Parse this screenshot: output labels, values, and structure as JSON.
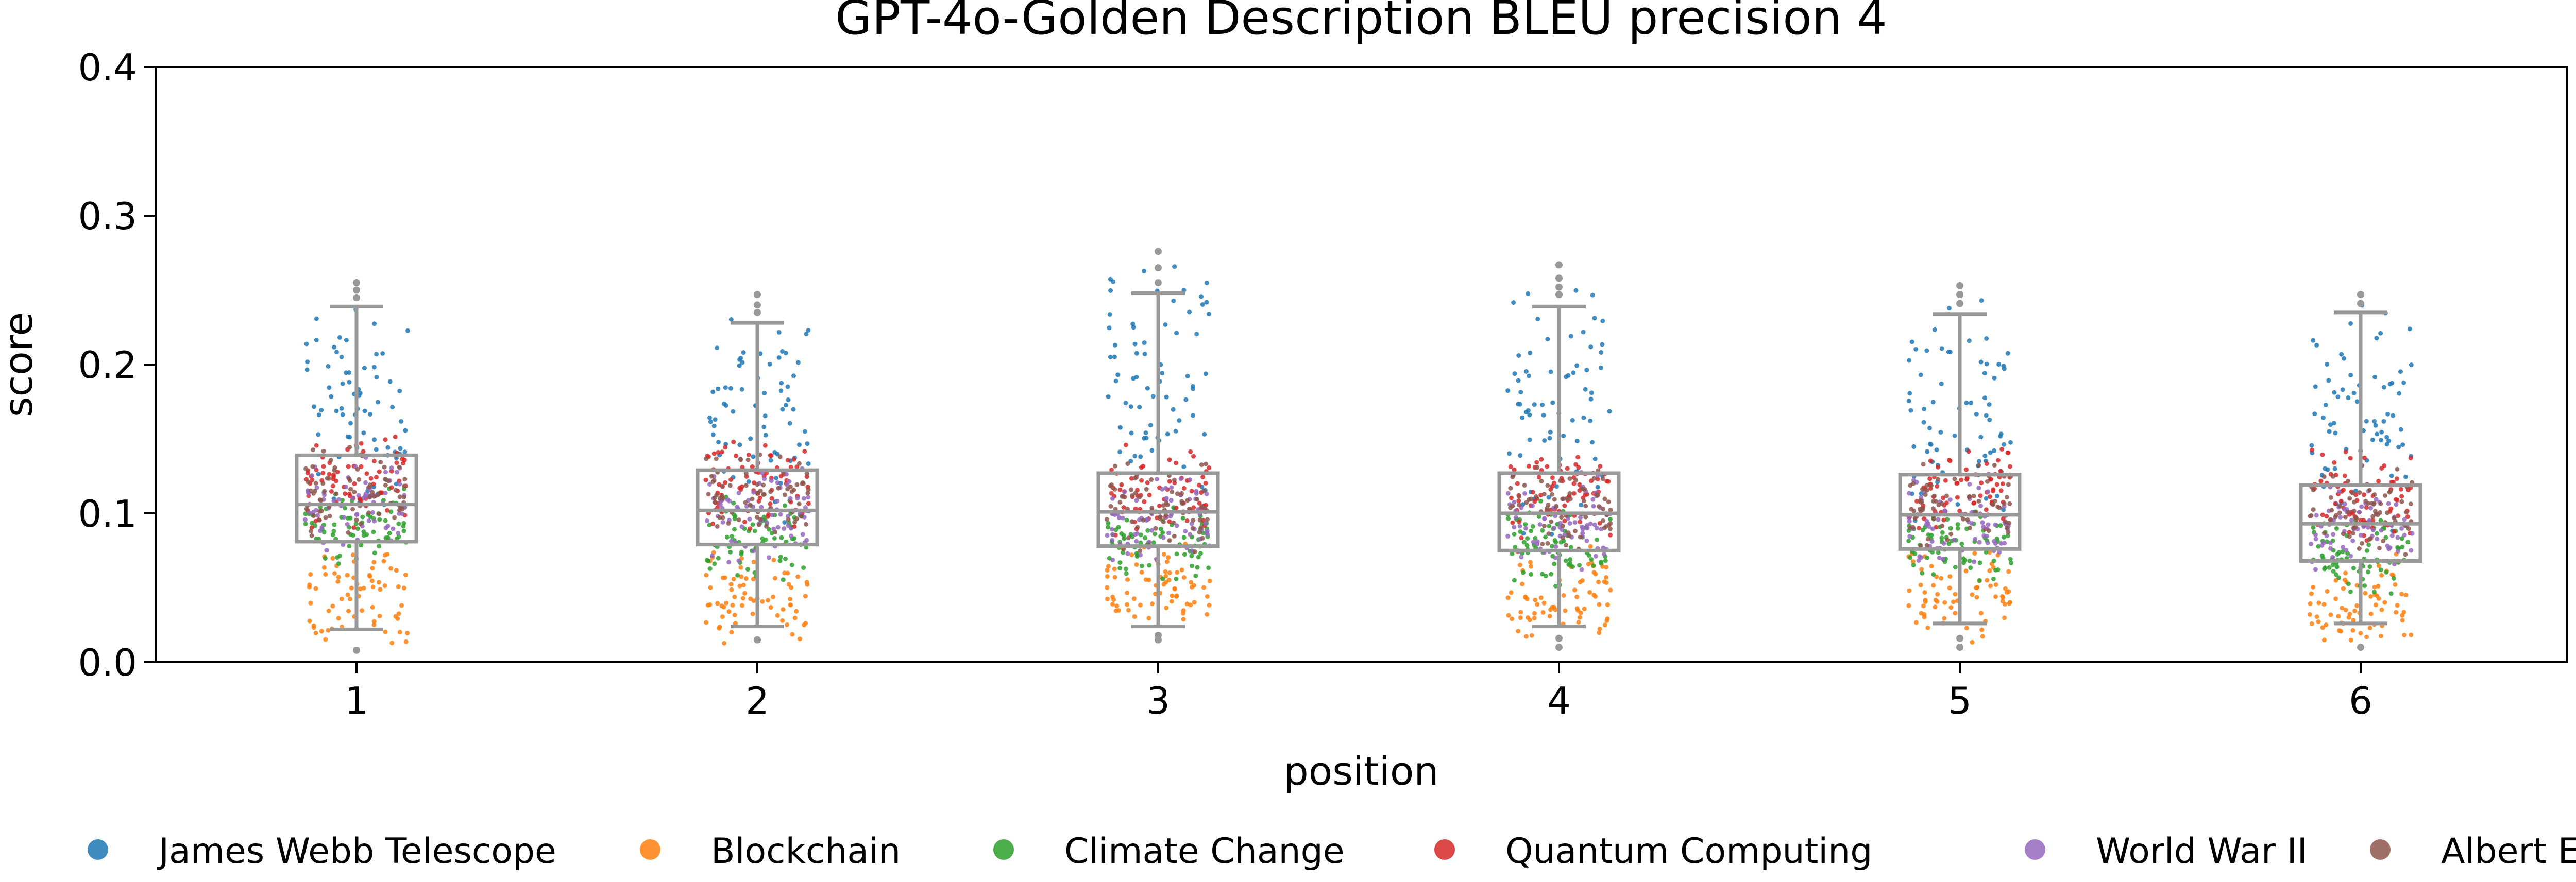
{
  "chart_data": {
    "type": "scatter",
    "title": "GPT-4o-Golden Description BLEU precision 4",
    "xlabel": "position",
    "ylabel": "score",
    "ylim": [
      0,
      0.4
    ],
    "yticks": [
      "0.0",
      "0.1",
      "0.2",
      "0.3",
      "0.4"
    ],
    "categories": [
      "1",
      "2",
      "3",
      "4",
      "5",
      "6"
    ],
    "grid": false,
    "legend_position": "bottom",
    "box_color": "#999999",
    "boxes": [
      {
        "position": "1",
        "whisker_low": 0.022,
        "q1": 0.081,
        "median": 0.106,
        "q3": 0.139,
        "whisker_high": 0.239
      },
      {
        "position": "2",
        "whisker_low": 0.024,
        "q1": 0.079,
        "median": 0.102,
        "q3": 0.129,
        "whisker_high": 0.228
      },
      {
        "position": "3",
        "whisker_low": 0.024,
        "q1": 0.078,
        "median": 0.101,
        "q3": 0.127,
        "whisker_high": 0.248
      },
      {
        "position": "4",
        "whisker_low": 0.024,
        "q1": 0.075,
        "median": 0.1,
        "q3": 0.127,
        "whisker_high": 0.239
      },
      {
        "position": "5",
        "whisker_low": 0.026,
        "q1": 0.076,
        "median": 0.099,
        "q3": 0.126,
        "whisker_high": 0.234
      },
      {
        "position": "6",
        "whisker_low": 0.026,
        "q1": 0.068,
        "median": 0.093,
        "q3": 0.119,
        "whisker_high": 0.235
      }
    ],
    "outliers": [
      {
        "position": "1",
        "values": [
          0.008,
          0.245,
          0.25,
          0.255
        ]
      },
      {
        "position": "2",
        "values": [
          0.015,
          0.235,
          0.24,
          0.247
        ]
      },
      {
        "position": "3",
        "values": [
          0.015,
          0.018,
          0.255,
          0.265,
          0.276
        ]
      },
      {
        "position": "4",
        "values": [
          0.01,
          0.016,
          0.247,
          0.252,
          0.258,
          0.267
        ]
      },
      {
        "position": "5",
        "values": [
          0.01,
          0.016,
          0.241,
          0.247,
          0.253
        ]
      },
      {
        "position": "6",
        "values": [
          0.01,
          0.241,
          0.247
        ]
      }
    ],
    "series": [
      {
        "name": "James Webb Telescope",
        "color": "#1f77b4",
        "ranges": {
          "1": [
            0.085,
            0.255
          ],
          "2": [
            0.08,
            0.245
          ],
          "3": [
            0.08,
            0.276
          ],
          "4": [
            0.08,
            0.267
          ],
          "5": [
            0.08,
            0.253
          ],
          "6": [
            0.075,
            0.25
          ]
        }
      },
      {
        "name": "Blockchain",
        "color": "#ff7f0e",
        "ranges": {
          "1": [
            0.01,
            0.08
          ],
          "2": [
            0.012,
            0.08
          ],
          "3": [
            0.015,
            0.085
          ],
          "4": [
            0.01,
            0.08
          ],
          "5": [
            0.012,
            0.08
          ],
          "6": [
            0.01,
            0.075
          ]
        }
      },
      {
        "name": "Climate Change",
        "color": "#2ca02c",
        "ranges": {
          "1": [
            0.06,
            0.12
          ],
          "2": [
            0.05,
            0.115
          ],
          "3": [
            0.05,
            0.11
          ],
          "4": [
            0.05,
            0.11
          ],
          "5": [
            0.05,
            0.11
          ],
          "6": [
            0.045,
            0.105
          ]
        }
      },
      {
        "name": "Quantum Computing",
        "color": "#d62728",
        "ranges": {
          "1": [
            0.09,
            0.16
          ],
          "2": [
            0.085,
            0.155
          ],
          "3": [
            0.08,
            0.15
          ],
          "4": [
            0.08,
            0.15
          ],
          "5": [
            0.08,
            0.15
          ],
          "6": [
            0.075,
            0.145
          ]
        }
      },
      {
        "name": "World War II",
        "color": "#9467bd",
        "ranges": {
          "1": [
            0.07,
            0.14
          ],
          "2": [
            0.065,
            0.135
          ],
          "3": [
            0.06,
            0.13
          ],
          "4": [
            0.06,
            0.13
          ],
          "5": [
            0.06,
            0.13
          ],
          "6": [
            0.055,
            0.125
          ]
        }
      },
      {
        "name": "Albert Einstein",
        "color": "#8c564b",
        "ranges": {
          "1": [
            0.08,
            0.15
          ],
          "2": [
            0.075,
            0.145
          ],
          "3": [
            0.07,
            0.14
          ],
          "4": [
            0.07,
            0.14
          ],
          "5": [
            0.07,
            0.14
          ],
          "6": [
            0.065,
            0.135
          ]
        }
      }
    ]
  }
}
